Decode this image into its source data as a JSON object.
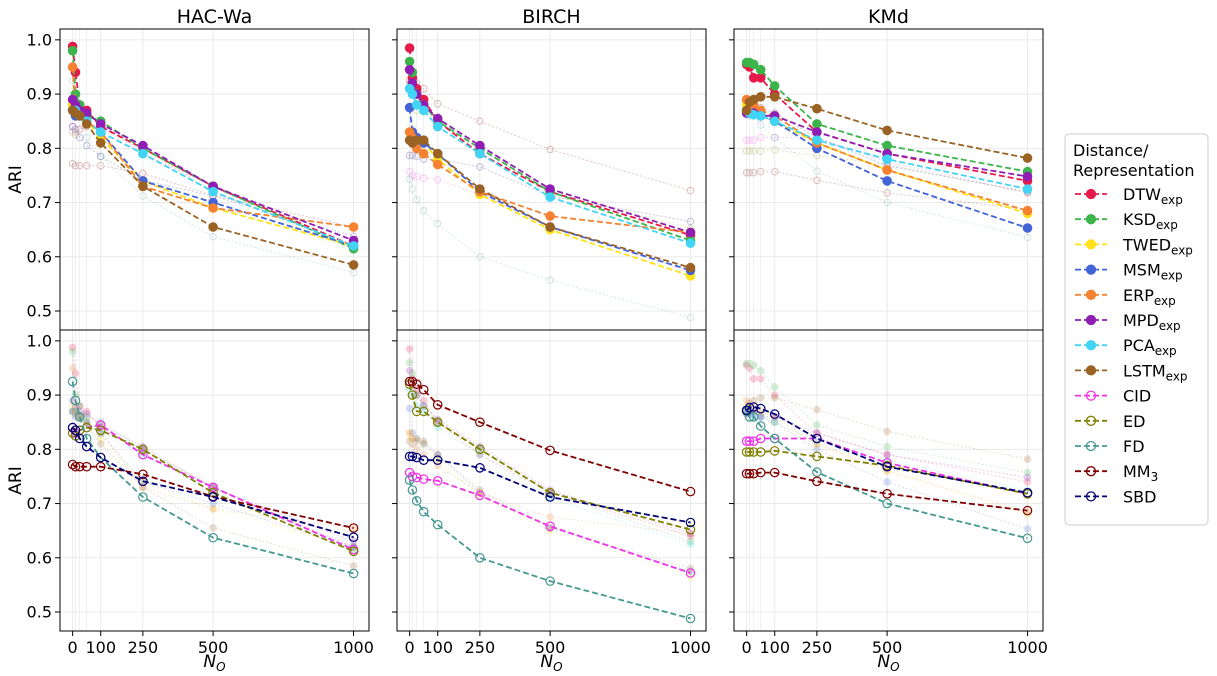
{
  "chart_data": {
    "type": "line",
    "x": [
      0,
      10,
      25,
      50,
      100,
      250,
      500,
      1000
    ],
    "xticks": [
      0,
      100,
      250,
      500,
      1000
    ],
    "xlim": [
      -45,
      1055
    ],
    "ylim": [
      0.465,
      1.02
    ],
    "yticks": [
      0.5,
      0.6,
      0.7,
      0.8,
      0.9,
      1.0
    ],
    "ylabel": "ARI",
    "xlabel_base": "N",
    "xlabel_sub": "O",
    "grid": true,
    "legend_placement": "right",
    "legend_title": [
      "Distance/",
      "Representation"
    ],
    "panels": [
      "HAC-Wa",
      "BIRCH",
      "KMd"
    ],
    "series": [
      {
        "name": "DTW",
        "sub": "exp",
        "group": "exp",
        "color": "#e6194b",
        "values": [
          [
            0.988,
            0.94,
            0.88,
            0.87,
            0.84,
            0.8,
            0.73,
            0.62
          ],
          [
            0.985,
            0.93,
            0.91,
            0.89,
            0.85,
            0.79,
            0.72,
            0.64
          ],
          [
            0.955,
            0.95,
            0.93,
            0.93,
            0.9,
            0.83,
            0.79,
            0.74
          ]
        ]
      },
      {
        "name": "KSD",
        "sub": "exp",
        "group": "exp",
        "color": "#3cb44b",
        "values": [
          [
            0.98,
            0.9,
            0.88,
            0.86,
            0.85,
            0.8,
            0.73,
            0.615
          ],
          [
            0.96,
            0.94,
            0.9,
            0.88,
            0.85,
            0.8,
            0.72,
            0.63
          ],
          [
            0.958,
            0.958,
            0.955,
            0.945,
            0.915,
            0.845,
            0.805,
            0.757
          ]
        ]
      },
      {
        "name": "TWED",
        "sub": "exp",
        "group": "exp",
        "color": "#ffe119",
        "values": [
          [
            0.88,
            0.87,
            0.86,
            0.85,
            0.82,
            0.74,
            0.69,
            0.62
          ],
          [
            0.83,
            0.82,
            0.82,
            0.81,
            0.78,
            0.715,
            0.65,
            0.565
          ],
          [
            0.88,
            0.875,
            0.87,
            0.865,
            0.85,
            0.81,
            0.76,
            0.68
          ]
        ]
      },
      {
        "name": "MSM",
        "sub": "exp",
        "group": "exp",
        "color": "#4363d8",
        "values": [
          [
            0.87,
            0.86,
            0.86,
            0.85,
            0.83,
            0.74,
            0.7,
            0.62
          ],
          [
            0.875,
            0.83,
            0.82,
            0.81,
            0.79,
            0.72,
            0.655,
            0.575
          ],
          [
            0.87,
            0.865,
            0.87,
            0.86,
            0.85,
            0.8,
            0.74,
            0.653
          ]
        ]
      },
      {
        "name": "ERP",
        "sub": "exp",
        "group": "exp",
        "color": "#f58231",
        "values": [
          [
            0.95,
            0.87,
            0.86,
            0.85,
            0.83,
            0.73,
            0.69,
            0.655
          ],
          [
            0.83,
            0.82,
            0.8,
            0.79,
            0.77,
            0.72,
            0.675,
            0.645
          ],
          [
            0.89,
            0.885,
            0.88,
            0.87,
            0.86,
            0.81,
            0.76,
            0.685
          ]
        ]
      },
      {
        "name": "MPD",
        "sub": "exp",
        "group": "exp",
        "color": "#911eb4",
        "values": [
          [
            0.89,
            0.88,
            0.87,
            0.865,
            0.845,
            0.805,
            0.73,
            0.63
          ],
          [
            0.945,
            0.92,
            0.9,
            0.88,
            0.855,
            0.805,
            0.725,
            0.645
          ],
          [
            0.865,
            0.865,
            0.865,
            0.86,
            0.86,
            0.83,
            0.79,
            0.748
          ]
        ]
      },
      {
        "name": "PCA",
        "sub": "exp",
        "group": "exp",
        "color": "#42d4f4",
        "values": [
          [
            0.87,
            0.87,
            0.86,
            0.85,
            0.83,
            0.79,
            0.72,
            0.62
          ],
          [
            0.91,
            0.9,
            0.88,
            0.87,
            0.84,
            0.79,
            0.71,
            0.625
          ],
          [
            0.87,
            0.865,
            0.862,
            0.86,
            0.85,
            0.815,
            0.78,
            0.725
          ]
        ]
      },
      {
        "name": "LSTM",
        "sub": "exp",
        "group": "exp",
        "color": "#9a6324",
        "values": [
          [
            0.87,
            0.865,
            0.86,
            0.845,
            0.81,
            0.73,
            0.655,
            0.585
          ],
          [
            0.815,
            0.81,
            0.815,
            0.815,
            0.79,
            0.725,
            0.655,
            0.58
          ],
          [
            0.87,
            0.885,
            0.89,
            0.895,
            0.895,
            0.873,
            0.833,
            0.782
          ]
        ]
      },
      {
        "name": "CID",
        "sub": "",
        "group": "base",
        "color": "#f032e6",
        "values": [
          [
            0.84,
            0.83,
            0.835,
            0.84,
            0.845,
            0.79,
            0.73,
            0.615
          ],
          [
            0.757,
            0.75,
            0.748,
            0.745,
            0.742,
            0.715,
            0.658,
            0.572
          ],
          [
            0.815,
            0.815,
            0.815,
            0.82,
            0.82,
            0.82,
            0.775,
            0.718
          ]
        ]
      },
      {
        "name": "ED",
        "sub": "",
        "group": "base",
        "color": "#808000",
        "values": [
          [
            0.83,
            0.825,
            0.835,
            0.84,
            0.835,
            0.8,
            0.72,
            0.612
          ],
          [
            0.92,
            0.9,
            0.87,
            0.87,
            0.85,
            0.8,
            0.72,
            0.652
          ],
          [
            0.795,
            0.795,
            0.795,
            0.795,
            0.797,
            0.787,
            0.77,
            0.718
          ]
        ]
      },
      {
        "name": "FD",
        "sub": "",
        "group": "base",
        "color": "#469990",
        "values": [
          [
            0.925,
            0.89,
            0.86,
            0.82,
            0.785,
            0.712,
            0.637,
            0.571
          ],
          [
            0.743,
            0.725,
            0.705,
            0.685,
            0.661,
            0.6,
            0.557,
            0.488
          ],
          [
            0.87,
            0.86,
            0.86,
            0.843,
            0.82,
            0.758,
            0.7,
            0.636
          ]
        ]
      },
      {
        "name": "MM",
        "sub": "3",
        "group": "base",
        "color": "#800000",
        "values": [
          [
            0.772,
            0.768,
            0.768,
            0.768,
            0.768,
            0.754,
            0.713,
            0.655
          ],
          [
            0.925,
            0.925,
            0.92,
            0.91,
            0.882,
            0.85,
            0.798,
            0.722
          ],
          [
            0.755,
            0.755,
            0.755,
            0.757,
            0.757,
            0.741,
            0.718,
            0.687
          ]
        ]
      },
      {
        "name": "SBD",
        "sub": "",
        "group": "base",
        "color": "#000075",
        "values": [
          [
            0.84,
            0.835,
            0.82,
            0.805,
            0.785,
            0.741,
            0.712,
            0.638
          ],
          [
            0.787,
            0.787,
            0.785,
            0.78,
            0.78,
            0.766,
            0.712,
            0.665
          ],
          [
            0.872,
            0.877,
            0.878,
            0.875,
            0.865,
            0.82,
            0.768,
            0.72
          ]
        ]
      }
    ]
  }
}
